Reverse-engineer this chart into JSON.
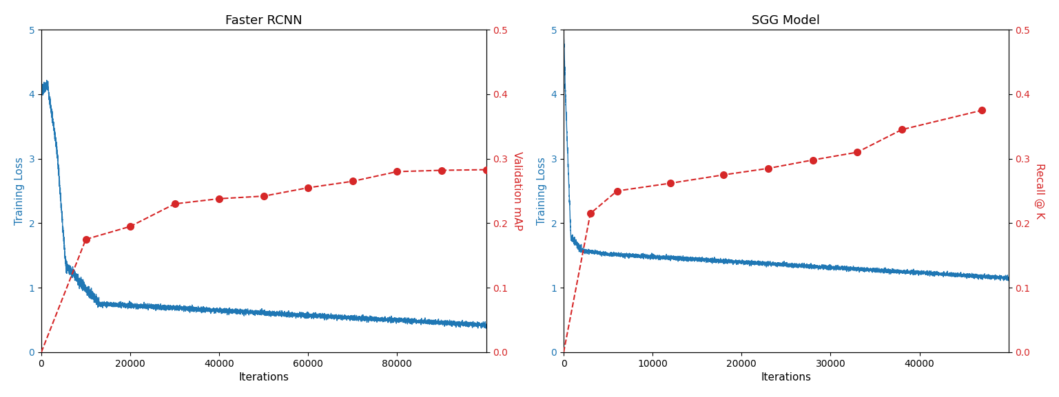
{
  "plot1": {
    "title": "Faster RCNN",
    "xlabel": "Iterations",
    "ylabel_left": "Training Loss",
    "ylabel_right": "Validation mAP",
    "ylim_left": [
      0,
      5
    ],
    "ylim_right": [
      0.0,
      0.5
    ],
    "xlim": [
      0,
      100000
    ],
    "xticks": [
      0,
      20000,
      40000,
      60000,
      80000
    ],
    "red_line": {
      "x": [
        10000,
        20000,
        30000,
        40000,
        50000,
        60000,
        70000,
        80000,
        90000,
        100000
      ],
      "y": [
        0.175,
        0.195,
        0.23,
        0.238,
        0.242,
        0.255,
        0.265,
        0.28,
        0.282,
        0.283
      ]
    }
  },
  "plot2": {
    "title": "SGG Model",
    "xlabel": "Iterations",
    "ylabel_left": "Training Loss",
    "ylabel_right": "Recall @ K",
    "ylim_left": [
      0,
      5
    ],
    "ylim_right": [
      0.0,
      0.5
    ],
    "xlim": [
      0,
      50000
    ],
    "xticks": [
      0,
      10000,
      20000,
      30000,
      40000
    ],
    "red_line": {
      "x": [
        3000,
        6000,
        12000,
        18000,
        23000,
        28000,
        33000,
        38000,
        47000
      ],
      "y": [
        0.215,
        0.25,
        0.262,
        0.275,
        0.285,
        0.298,
        0.31,
        0.345,
        0.375
      ]
    }
  },
  "blue_color": "#1f77b4",
  "red_color": "#d62728",
  "background_color": "#ffffff"
}
